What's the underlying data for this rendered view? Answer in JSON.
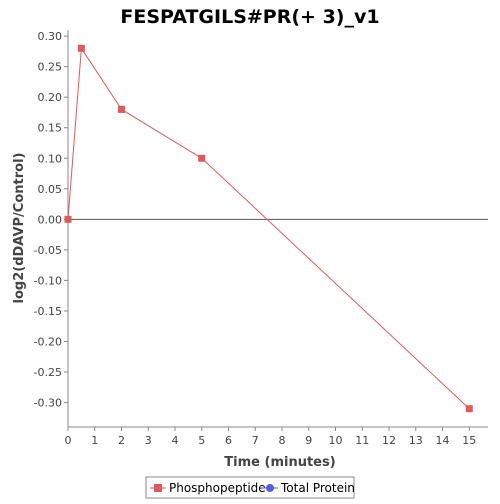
{
  "colors": {
    "phosphopeptide": "#e05a5a",
    "total_protein": "#5a5ae0",
    "axis": "#888888",
    "zero_line": "#555555"
  },
  "legend": {
    "items": [
      {
        "label": "Phosphopeptide",
        "marker": "square",
        "color": "#e05a5a"
      },
      {
        "label": "Total Protein",
        "marker": "circle",
        "color": "#5a5ae0"
      }
    ]
  },
  "chart_data": {
    "type": "line",
    "title": "FESPATGILS#PR(+ 3)_v1",
    "xlabel": "Time (minutes)",
    "ylabel": "log2(dDAVP/Control)",
    "xlim": [
      0,
      15.7
    ],
    "ylim": [
      -0.34,
      0.31
    ],
    "xticks": [
      0,
      1,
      2,
      3,
      4,
      5,
      6,
      7,
      8,
      9,
      10,
      11,
      12,
      13,
      14,
      15
    ],
    "yticks": [
      0.3,
      0.25,
      0.2,
      0.15,
      0.1,
      0.05,
      0.0,
      -0.05,
      -0.1,
      -0.15,
      -0.2,
      -0.25,
      -0.3
    ],
    "ytick_labels": [
      "0.30",
      "0.25",
      "0.20",
      "0.15",
      "0.10",
      "0.05",
      "0.00",
      "-0.05",
      "-0.10",
      "-0.15",
      "-0.20",
      "-0.25",
      "-0.30"
    ],
    "grid": false,
    "zero_line": true,
    "legend_position": "bottom",
    "series": [
      {
        "name": "Phosphopeptide",
        "color": "#e05a5a",
        "marker": "square",
        "x": [
          0,
          0.5,
          2,
          5,
          15
        ],
        "y": [
          0.0,
          0.28,
          0.18,
          0.1,
          -0.31
        ]
      },
      {
        "name": "Total Protein",
        "color": "#5a5ae0",
        "marker": "circle",
        "x": [],
        "y": []
      }
    ]
  }
}
